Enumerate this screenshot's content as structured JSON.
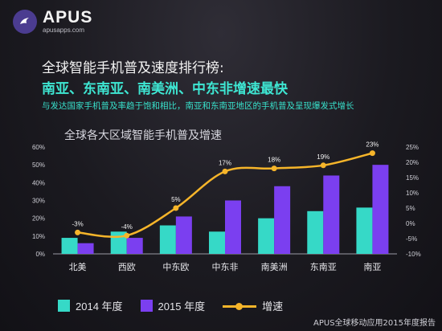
{
  "logo": {
    "name": "APUS",
    "site": "apusapps.com"
  },
  "headline": "全球智能手机普及速度排行榜:",
  "subhead": "南亚、东南亚、南美洲、中东非增速最快",
  "note": "与发达国家手机普及率趋于饱和相比，南亚和东南亚地区的手机普及呈现爆发式增长",
  "footer": "APUS全球移动应用2015年度报告",
  "legend": {
    "s2014": "2014 年度",
    "s2015": "2015 年度",
    "growth": "增速"
  },
  "colors": {
    "bar2014": "#36d9c7",
    "bar2015": "#7b3ff0",
    "line": "#f6b52a",
    "title": "#3ee6d2"
  },
  "chart_data": {
    "type": "bar",
    "title": "全球各大区域智能手机普及增速",
    "categories": [
      "北美",
      "西欧",
      "中东欧",
      "中东非",
      "南美洲",
      "东南亚",
      "南亚"
    ],
    "series": [
      {
        "name": "2014 年度",
        "values": [
          9,
          12.5,
          16,
          12.5,
          20,
          24,
          26
        ]
      },
      {
        "name": "2015 年度",
        "values": [
          6,
          9,
          21,
          30,
          38,
          44,
          50
        ]
      }
    ],
    "line_series": {
      "name": "增速",
      "values": [
        -3,
        -4,
        5,
        17,
        18,
        19,
        23
      ],
      "labels": [
        "-3%",
        "-4%",
        "5%",
        "17%",
        "18%",
        "19%",
        "23%"
      ]
    },
    "y_left": {
      "min": 0,
      "max": 60,
      "ticks": [
        "0%",
        "10%",
        "20%",
        "30%",
        "40%",
        "50%",
        "60%"
      ]
    },
    "y_right": {
      "min": -10,
      "max": 25,
      "ticks": [
        "-10%",
        "-5%",
        "0%",
        "5%",
        "10%",
        "15%",
        "20%",
        "25%"
      ]
    },
    "grid": false
  }
}
